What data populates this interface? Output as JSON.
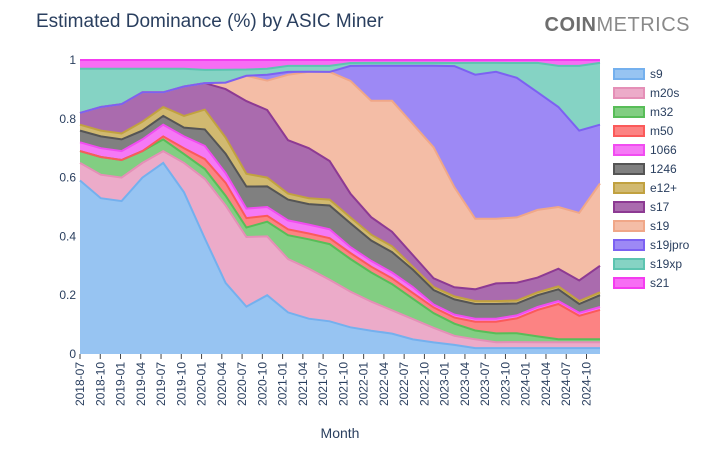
{
  "brand": {
    "bold": "COIN",
    "light": "METRICS"
  },
  "chart_data": {
    "type": "area",
    "title": "Estimated Dominance (%) by ASIC Miner",
    "xlabel": "Month",
    "ylabel": "",
    "ylim": [
      0,
      1
    ],
    "y_ticks": [
      "0",
      "0.2",
      "0.4",
      "0.6",
      "0.8",
      "1"
    ],
    "y_tick_values": [
      0,
      0.2,
      0.4,
      0.6,
      0.8,
      1
    ],
    "x_ticks": [
      "2018-07",
      "2018-10",
      "2019-01",
      "2019-04",
      "2019-07",
      "2019-10",
      "2020-01",
      "2020-04",
      "2020-07",
      "2020-10",
      "2021-01",
      "2021-04",
      "2021-07",
      "2021-10",
      "2022-01",
      "2022-04",
      "2022-07",
      "2022-10",
      "2023-01",
      "2023-04",
      "2023-07",
      "2023-10",
      "2024-01",
      "2024-04",
      "2024-07",
      "2024-10"
    ],
    "x_start": "2018-07",
    "x_end": "2024-12",
    "stacked": true,
    "legend_position": "right",
    "series": [
      {
        "name": "s9",
        "color": "#74b0ee",
        "values": [
          0.59,
          0.53,
          0.52,
          0.6,
          0.65,
          0.55,
          0.35,
          0.22,
          0.15,
          0.2,
          0.14,
          0.12,
          0.11,
          0.09,
          0.08,
          0.07,
          0.05,
          0.04,
          0.03,
          0.02,
          0.02,
          0.02,
          0.02,
          0.02,
          0.02,
          0.02
        ]
      },
      {
        "name": "m20s",
        "color": "#e58fb7",
        "values": [
          0.06,
          0.08,
          0.08,
          0.05,
          0.04,
          0.1,
          0.18,
          0.24,
          0.22,
          0.2,
          0.18,
          0.17,
          0.14,
          0.12,
          0.1,
          0.08,
          0.07,
          0.05,
          0.03,
          0.03,
          0.02,
          0.02,
          0.02,
          0.02,
          0.02,
          0.02
        ]
      },
      {
        "name": "m32",
        "color": "#58bd58",
        "values": [
          0.04,
          0.06,
          0.06,
          0.04,
          0.04,
          0.03,
          0.03,
          0.03,
          0.03,
          0.05,
          0.08,
          0.1,
          0.12,
          0.11,
          0.1,
          0.09,
          0.07,
          0.05,
          0.04,
          0.03,
          0.03,
          0.03,
          0.02,
          0.01,
          0.01,
          0.01
        ]
      },
      {
        "name": "m50",
        "color": "#fb5a5a",
        "values": [
          0.0,
          0.0,
          0.0,
          0.0,
          0.01,
          0.02,
          0.03,
          0.04,
          0.03,
          0.02,
          0.02,
          0.02,
          0.02,
          0.02,
          0.02,
          0.02,
          0.02,
          0.02,
          0.02,
          0.03,
          0.04,
          0.05,
          0.09,
          0.12,
          0.08,
          0.1
        ]
      },
      {
        "name": "1066",
        "color": "#f14cf1",
        "values": [
          0.03,
          0.03,
          0.03,
          0.04,
          0.04,
          0.04,
          0.04,
          0.03,
          0.03,
          0.03,
          0.03,
          0.03,
          0.03,
          0.02,
          0.02,
          0.02,
          0.02,
          0.01,
          0.01,
          0.01,
          0.01,
          0.01,
          0.01,
          0.01,
          0.01,
          0.01
        ]
      },
      {
        "name": "1246",
        "color": "#555555",
        "values": [
          0.04,
          0.04,
          0.04,
          0.03,
          0.03,
          0.03,
          0.05,
          0.06,
          0.07,
          0.07,
          0.07,
          0.07,
          0.08,
          0.08,
          0.07,
          0.07,
          0.06,
          0.05,
          0.05,
          0.05,
          0.05,
          0.04,
          0.04,
          0.04,
          0.03,
          0.04
        ]
      },
      {
        "name": "e12+",
        "color": "#c1a140",
        "values": [
          0.02,
          0.02,
          0.02,
          0.03,
          0.03,
          0.04,
          0.06,
          0.05,
          0.04,
          0.03,
          0.02,
          0.02,
          0.02,
          0.02,
          0.02,
          0.02,
          0.01,
          0.01,
          0.01,
          0.01,
          0.01,
          0.01,
          0.01,
          0.01,
          0.01,
          0.01
        ]
      },
      {
        "name": "s17",
        "color": "#8d3a93",
        "values": [
          0.04,
          0.08,
          0.1,
          0.1,
          0.05,
          0.1,
          0.08,
          0.15,
          0.23,
          0.23,
          0.18,
          0.17,
          0.13,
          0.08,
          0.06,
          0.05,
          0.04,
          0.03,
          0.03,
          0.04,
          0.06,
          0.06,
          0.05,
          0.06,
          0.07,
          0.09
        ]
      },
      {
        "name": "s19",
        "color": "#f0a788",
        "values": [
          0.0,
          0.0,
          0.0,
          0.0,
          0.0,
          0.0,
          0.0,
          0.02,
          0.08,
          0.1,
          0.22,
          0.26,
          0.3,
          0.38,
          0.4,
          0.45,
          0.45,
          0.45,
          0.33,
          0.24,
          0.22,
          0.22,
          0.23,
          0.21,
          0.23,
          0.28
        ]
      },
      {
        "name": "s19jpro",
        "color": "#7c61f2",
        "values": [
          0.0,
          0.0,
          0.0,
          0.0,
          0.0,
          0.0,
          0.0,
          0.0,
          0.0,
          0.02,
          0.01,
          0.0,
          0.0,
          0.05,
          0.12,
          0.12,
          0.2,
          0.28,
          0.4,
          0.49,
          0.5,
          0.47,
          0.4,
          0.34,
          0.28,
          0.2
        ]
      },
      {
        "name": "s19xp",
        "color": "#5cc4b0",
        "values": [
          0.15,
          0.13,
          0.12,
          0.08,
          0.08,
          0.06,
          0.04,
          0.04,
          0.02,
          0.02,
          0.02,
          0.02,
          0.02,
          0.01,
          0.01,
          0.01,
          0.01,
          0.01,
          0.01,
          0.04,
          0.03,
          0.05,
          0.1,
          0.14,
          0.22,
          0.21
        ]
      },
      {
        "name": "s21",
        "color": "#f43cf0",
        "values": [
          0.03,
          0.03,
          0.03,
          0.03,
          0.03,
          0.03,
          0.03,
          0.03,
          0.03,
          0.03,
          0.02,
          0.02,
          0.02,
          0.01,
          0.01,
          0.01,
          0.01,
          0.01,
          0.01,
          0.01,
          0.01,
          0.01,
          0.01,
          0.02,
          0.02,
          0.01
        ]
      }
    ]
  }
}
